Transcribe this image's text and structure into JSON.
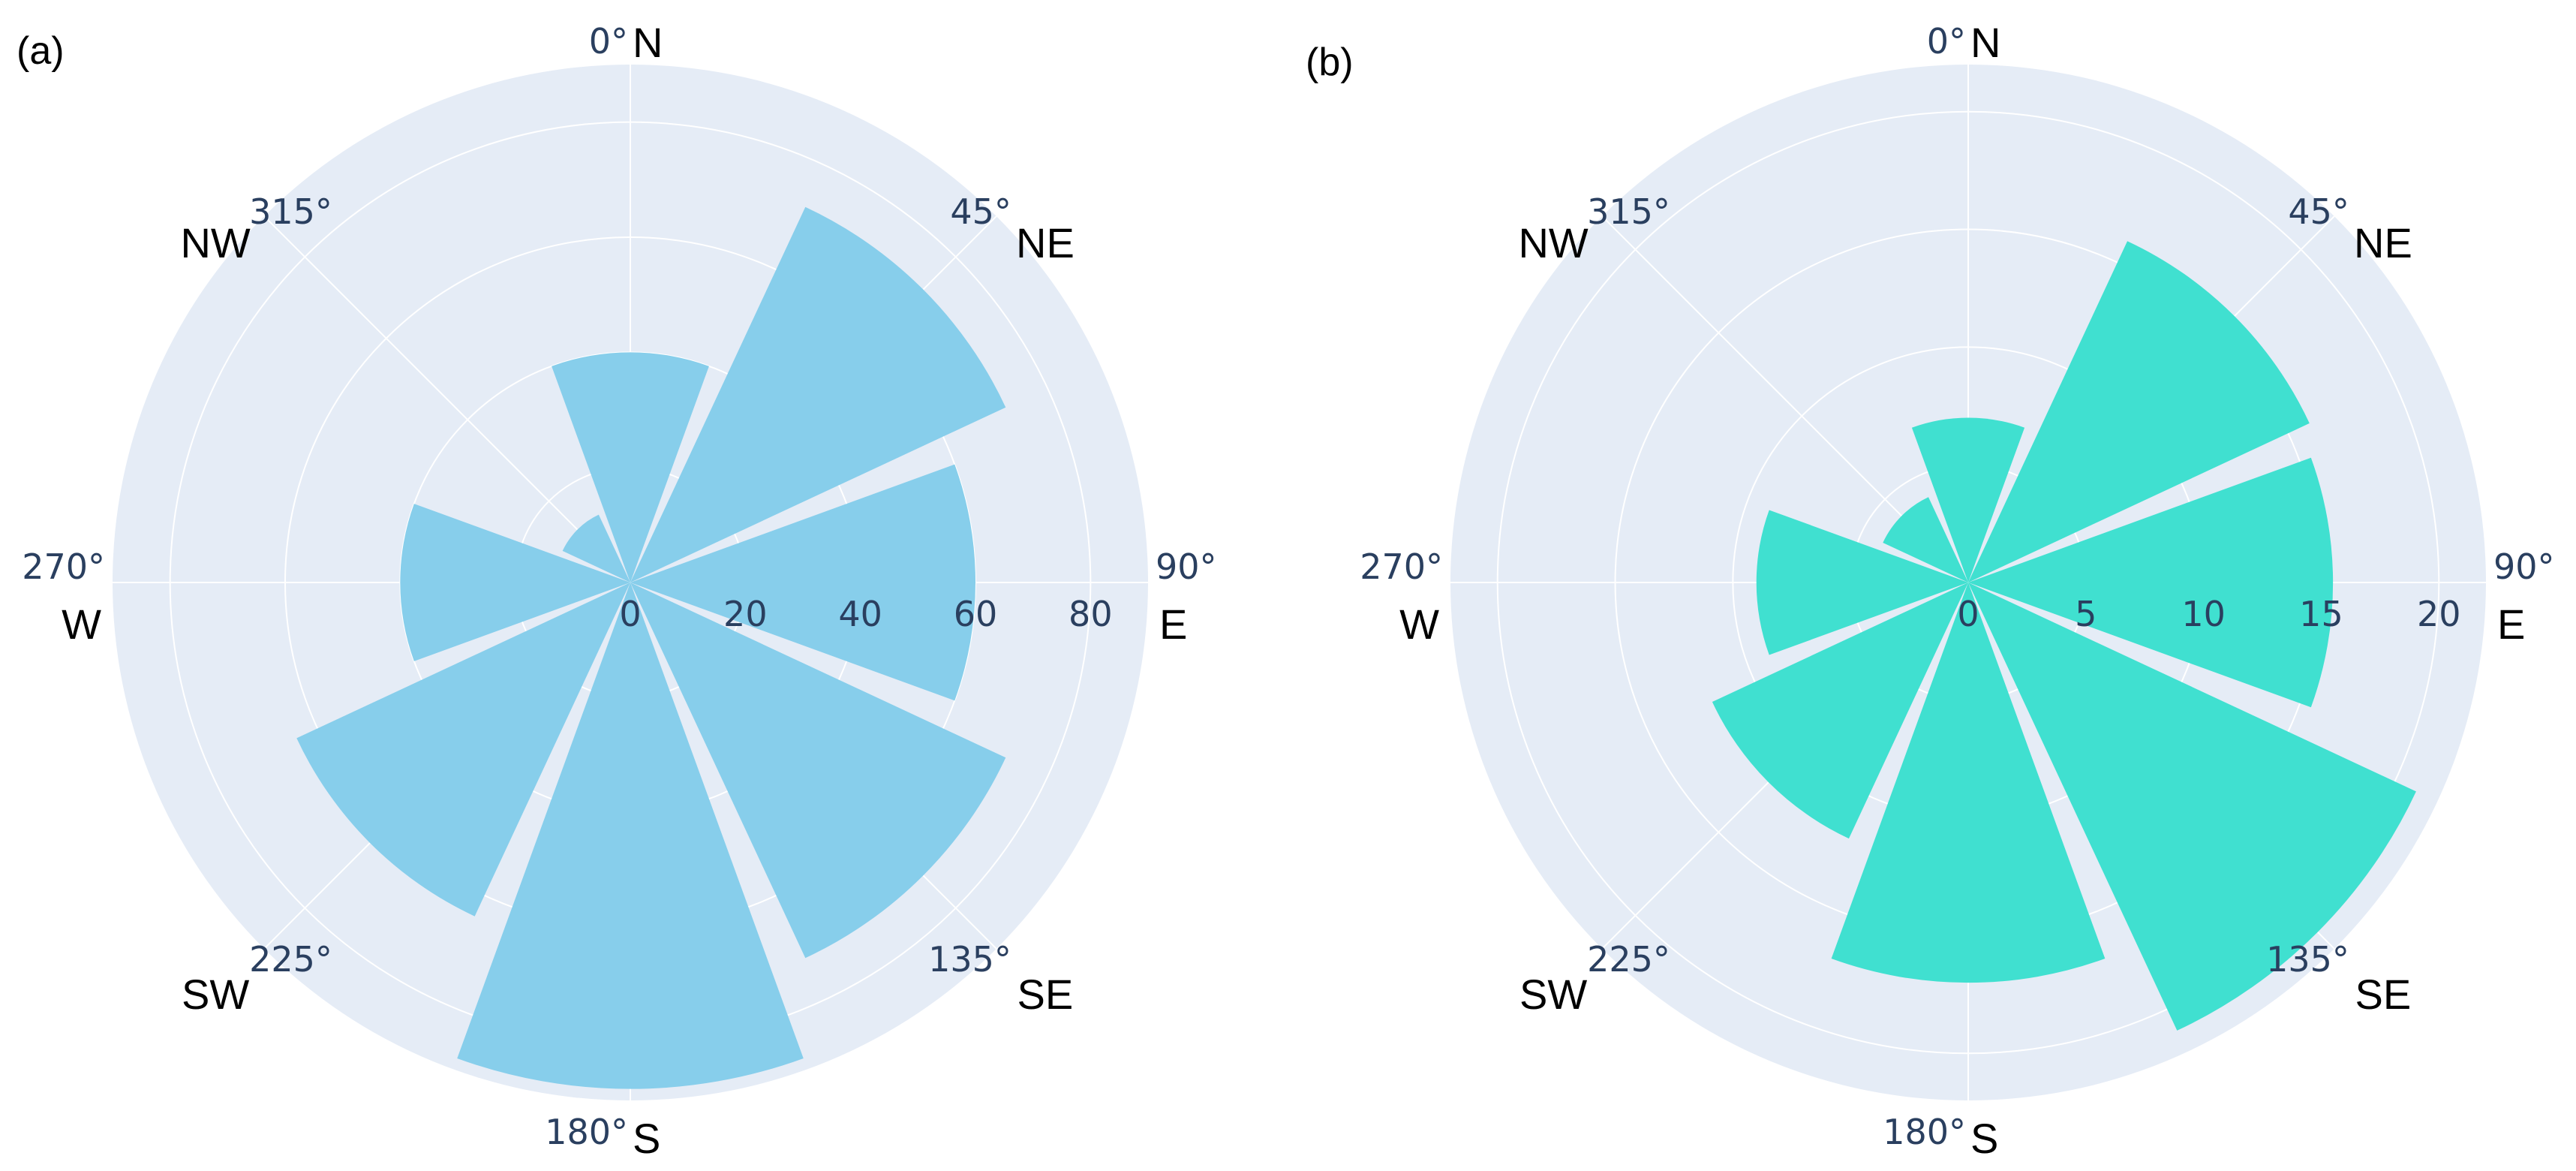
{
  "chart_data": [
    {
      "type": "barpolar",
      "panel_label": "(a)",
      "color": "#87CEEB",
      "angular_ticks": [
        "0°",
        "45°",
        "90°",
        "135°",
        "180°",
        "225°",
        "270°",
        "315°"
      ],
      "directions": [
        "N",
        "NE",
        "E",
        "SE",
        "S",
        "SW",
        "W",
        "NW"
      ],
      "direction_angles": [
        0,
        45,
        90,
        135,
        180,
        225,
        270,
        315
      ],
      "radial_ticks": [
        0,
        20,
        40,
        60,
        80
      ],
      "radial_range": [
        0,
        90
      ],
      "values": [
        40,
        72,
        60,
        72,
        88,
        64,
        40,
        13
      ],
      "bar_width_deg": 40
    },
    {
      "type": "barpolar",
      "panel_label": "(b)",
      "color": "#40E0D0",
      "angular_ticks": [
        "0°",
        "45°",
        "90°",
        "135°",
        "180°",
        "225°",
        "270°",
        "315°"
      ],
      "directions": [
        "N",
        "NE",
        "E",
        "SE",
        "S",
        "SW",
        "W",
        "NW"
      ],
      "direction_angles": [
        0,
        45,
        90,
        135,
        180,
        225,
        270,
        315
      ],
      "radial_ticks": [
        0,
        5,
        10,
        15,
        20
      ],
      "radial_range": [
        0,
        22
      ],
      "values": [
        7,
        16,
        15.5,
        21,
        17,
        12,
        9,
        4
      ],
      "bar_width_deg": 40
    }
  ],
  "style": {
    "polar_bg": "#E5ECF6",
    "grid_color": "#ffffff",
    "tick_color": "#2a3f5f"
  }
}
